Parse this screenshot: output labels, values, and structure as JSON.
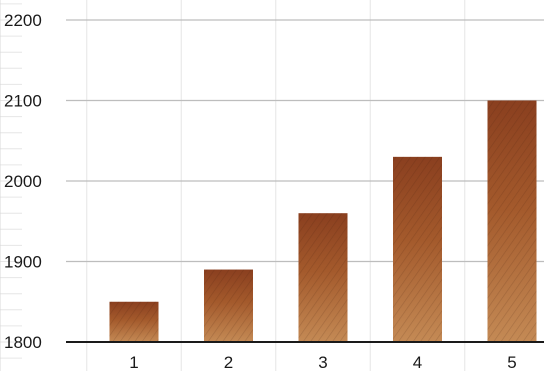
{
  "app": {
    "background": "#ffffff",
    "grid_color": "#bdbdbd",
    "minor_grid_color": "#e6e6e6",
    "axis_color": "#1a1a1a",
    "bar_color": "#8b4a23"
  },
  "chart_data": {
    "type": "bar",
    "categories": [
      "1",
      "2",
      "3",
      "4",
      "5"
    ],
    "values": [
      1850,
      1890,
      1960,
      2030,
      2100
    ],
    "ylim": [
      1800,
      2200
    ],
    "y_ticks": [
      1800,
      1900,
      2000,
      2100,
      2200
    ],
    "y_tick_labels": [
      "1800",
      "1900",
      "2000",
      "2100",
      "2200"
    ],
    "x_tick_labels": [
      "1",
      "2",
      "3",
      "4",
      "5"
    ],
    "title": "",
    "xlabel": "",
    "ylabel": "",
    "grid": true,
    "legend": "none"
  }
}
